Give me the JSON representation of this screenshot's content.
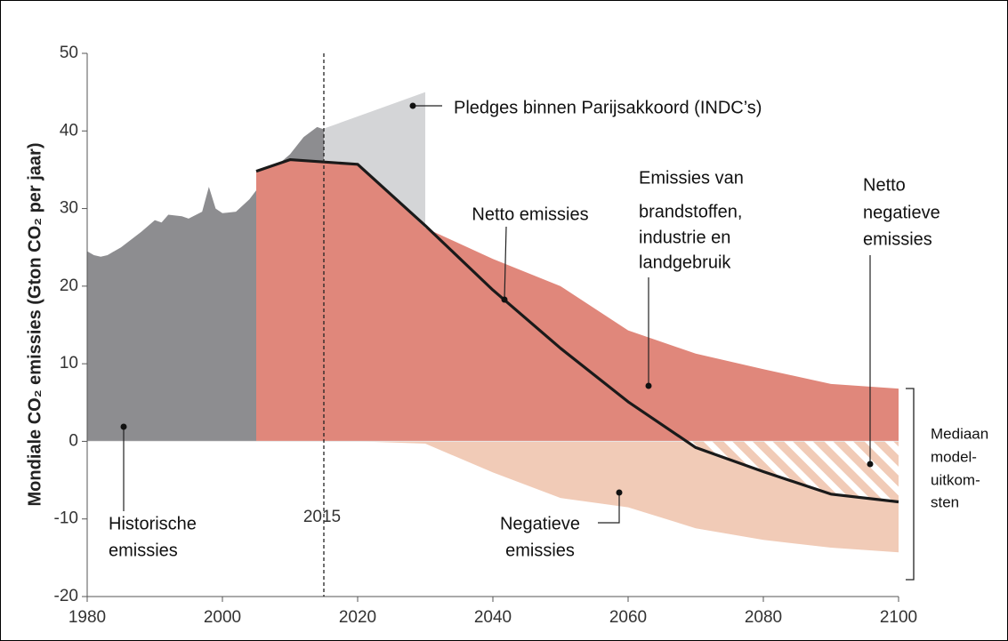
{
  "chart_data": {
    "type": "area",
    "y_label": "Mondiale CO₂ emissies (Gton CO₂ per jaar)",
    "xlim": [
      1980,
      2100
    ],
    "xticks": [
      1980,
      2000,
      2020,
      2040,
      2060,
      2080,
      2100
    ],
    "ylim": [
      -20,
      50
    ],
    "yticks": [
      -20,
      -10,
      0,
      10,
      20,
      30,
      40,
      50
    ],
    "vline": {
      "x": 2015
    },
    "series": [
      {
        "type": "area",
        "color": "#8d8d90",
        "x": [
          1980,
          1981,
          1982,
          1983,
          1985,
          1988,
          1990,
          1991,
          1992,
          1994,
          1995,
          1997,
          1998,
          1999,
          2000,
          2002,
          2004,
          2006,
          2008,
          2010,
          2012,
          2014,
          2015
        ],
        "values": [
          24.5,
          24,
          23.8,
          24,
          25,
          27,
          28.5,
          28.2,
          29.2,
          29,
          28.7,
          29.6,
          32.8,
          30,
          29.4,
          29.6,
          31.2,
          33.5,
          35.5,
          37,
          39.2,
          40.5,
          40.2
        ]
      },
      {
        "type": "area",
        "color": "#d4d5d7",
        "x": [
          2015,
          2030
        ],
        "values": [
          40.3,
          45
        ]
      },
      {
        "type": "area",
        "color": "#e0877b",
        "x": [
          2005,
          2010,
          2020,
          2030,
          2040,
          2050,
          2060,
          2070,
          2080,
          2090,
          2100
        ],
        "values": [
          34.8,
          36.3,
          35.7,
          27.5,
          23.5,
          20,
          14.3,
          11.3,
          9.3,
          7.4,
          6.8
        ]
      },
      {
        "type": "area",
        "color": "#f1cbb7",
        "x": [
          2005,
          2020,
          2030,
          2040,
          2050,
          2060,
          2070,
          2080,
          2090,
          2100
        ],
        "values": [
          0,
          0,
          -0.3,
          -4,
          -7.3,
          -8.5,
          -11.2,
          -12.7,
          -13.7,
          -14.3
        ]
      },
      {
        "type": "line",
        "color": "#1a1a1a",
        "hatch": "#ffffff",
        "x": [
          2005,
          2010,
          2020,
          2030,
          2040,
          2050,
          2060,
          2070,
          2080,
          2090,
          2100
        ],
        "values": [
          34.8,
          36.3,
          35.7,
          27.8,
          19.5,
          12,
          5.1,
          -0.8,
          -3.9,
          -6.8,
          -7.8
        ]
      }
    ],
    "annotations": [
      {
        "lines": [
          "Pledges binnen Parijsakkoord (INDC’s)"
        ]
      },
      {
        "lines": [
          "Netto emissies"
        ]
      },
      {
        "lines": [
          "Emissies van",
          "brandstoffen,",
          "industrie en",
          "landgebruik"
        ]
      },
      {
        "lines": [
          "Netto",
          "negatieve",
          "emissies"
        ]
      },
      {
        "lines": [
          "Historische",
          "emissies"
        ]
      },
      {
        "lines": [
          "Negatieve",
          "emissies"
        ]
      },
      {
        "lines": [
          "Mediaan",
          "model-",
          "uitkom-",
          "sten"
        ]
      }
    ]
  }
}
